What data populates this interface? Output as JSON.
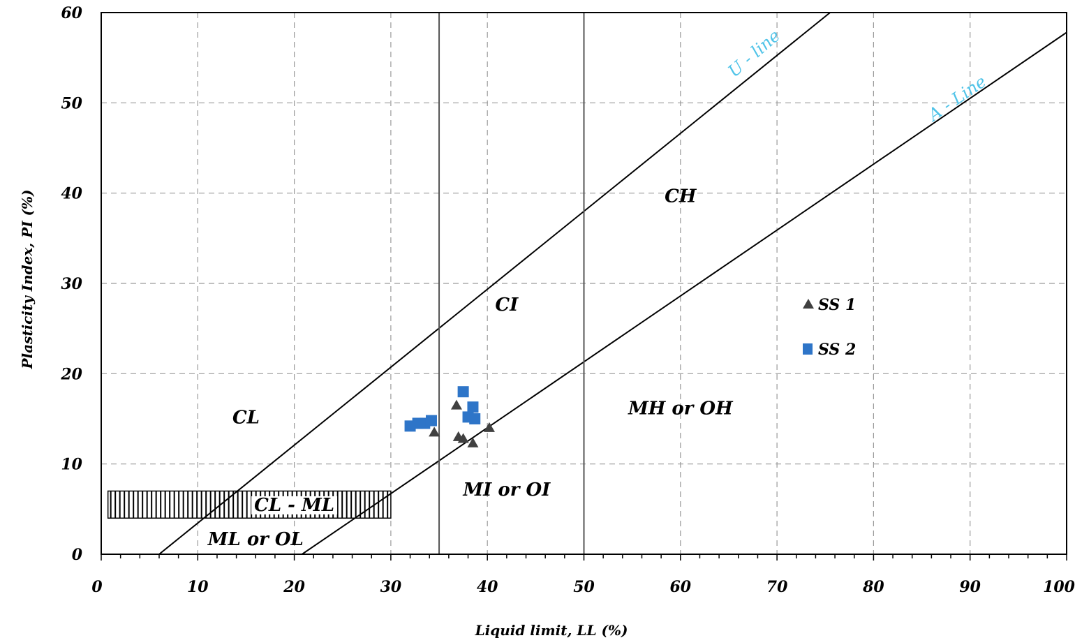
{
  "chart_data": {
    "type": "scatter",
    "title": "",
    "xlabel": "Liquid limit, LL (%)",
    "ylabel": "Plasticity Index, PI (%)",
    "xlim": [
      0,
      100
    ],
    "ylim": [
      0,
      60
    ],
    "x_ticks": [
      "0",
      "10",
      "20",
      "30",
      "40",
      "50",
      "60",
      "70",
      "80",
      "90",
      "100"
    ],
    "y_ticks": [
      "0",
      "10",
      "20",
      "30",
      "40",
      "50",
      "60"
    ],
    "grid": true,
    "legend_position": "right",
    "series": [
      {
        "name": "SS 1",
        "marker": "triangle",
        "color": "#404040",
        "points": [
          {
            "x": 34.5,
            "y": 13.5
          },
          {
            "x": 36.8,
            "y": 16.5
          },
          {
            "x": 37.0,
            "y": 13.0
          },
          {
            "x": 37.5,
            "y": 12.8
          },
          {
            "x": 38.5,
            "y": 12.3
          },
          {
            "x": 40.2,
            "y": 14.0
          }
        ]
      },
      {
        "name": "SS 2",
        "marker": "square",
        "color": "#2e75c8",
        "points": [
          {
            "x": 32.0,
            "y": 14.2
          },
          {
            "x": 32.8,
            "y": 14.5
          },
          {
            "x": 33.5,
            "y": 14.5
          },
          {
            "x": 34.2,
            "y": 14.8
          },
          {
            "x": 37.5,
            "y": 18.0
          },
          {
            "x": 38.0,
            "y": 15.2
          },
          {
            "x": 38.5,
            "y": 16.3
          },
          {
            "x": 38.7,
            "y": 15.0
          }
        ]
      }
    ],
    "reference_lines": [
      {
        "name": "U - line",
        "x1": 6,
        "y1": 0,
        "x2": 75.5,
        "y2": 60,
        "color": "#000000"
      },
      {
        "name": "A - Line",
        "x1": 20.8,
        "y1": 0,
        "x2": 100,
        "y2": 57.8,
        "color": "#000000"
      }
    ],
    "vertical_lines": [
      35,
      50
    ],
    "hatched_band": {
      "x_start": 0.7,
      "x_end": 30,
      "y_low": 4,
      "y_high": 7
    },
    "regions": [
      {
        "label": "CH",
        "x": 60,
        "y": 39
      },
      {
        "label": "CI",
        "x": 42,
        "y": 27
      },
      {
        "label": "CL",
        "x": 15,
        "y": 14.5
      },
      {
        "label": "MH or OH",
        "x": 60,
        "y": 15.5
      },
      {
        "label": "MI or OI",
        "x": 42,
        "y": 6.5
      },
      {
        "label": "CL - ML",
        "x": 20,
        "y": 4.8
      },
      {
        "label": "ML or OL",
        "x": 16,
        "y": 1
      }
    ],
    "line_labels": [
      {
        "label": "U - line",
        "x": 68,
        "y": 55,
        "angle": 40.8
      },
      {
        "label": "A - Line",
        "x": 89,
        "y": 50,
        "angle": 34.5
      }
    ],
    "legend": [
      {
        "label": "SS 1",
        "marker": "triangle"
      },
      {
        "label": "SS 2",
        "marker": "square"
      }
    ]
  }
}
